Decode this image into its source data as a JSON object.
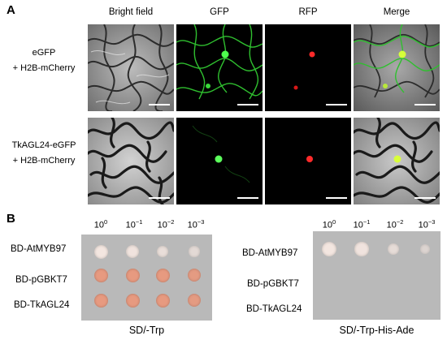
{
  "panel_a": {
    "letter": "A",
    "columns": [
      "Bright field",
      "GFP",
      "RFP",
      "Merge"
    ],
    "rows": [
      {
        "label_line1": "eGFP",
        "label_line2": "+ H2B-mCherry"
      },
      {
        "label_line1": "TkAGL24-eGFP",
        "label_line2": "+ H2B-mCherry"
      }
    ]
  },
  "panel_b": {
    "letter": "B",
    "dilution_base": "10",
    "dilution_exponents": [
      "0",
      "−1",
      "−2",
      "−3"
    ],
    "plates": [
      {
        "media": "SD/-Trp",
        "strains": [
          "BD-AtMYB97",
          "BD-pGBKT7",
          "BD-TkAGL24"
        ],
        "growth": [
          [
            1.0,
            0.9,
            0.7,
            0.5
          ],
          [
            1.0,
            1.0,
            1.0,
            0.9
          ],
          [
            1.0,
            1.0,
            1.0,
            0.9
          ]
        ]
      },
      {
        "media": "SD/-Trp-His-Ade",
        "strains": [
          "BD-AtMYB97",
          "BD-pGBKT7",
          "BD-TkAGL24"
        ],
        "growth": [
          [
            1.0,
            0.9,
            0.6,
            0.3
          ],
          [
            0.0,
            0.0,
            0.0,
            0.0
          ],
          [
            0.0,
            0.0,
            0.0,
            0.0
          ]
        ]
      }
    ],
    "colors": {
      "white_colony": "#f3e6e0",
      "pink_colony": "#e79a80",
      "plate_bg": "#b9b9b9"
    }
  }
}
